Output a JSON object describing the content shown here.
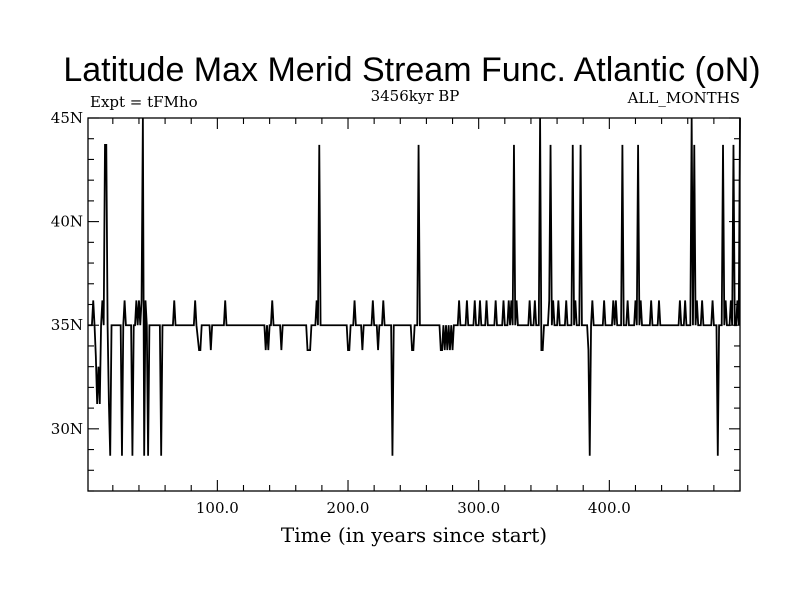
{
  "chart_data": {
    "type": "line",
    "title": "Latitude Max Merid Stream Func. Atlantic (oN)",
    "subtitle_left": "Expt = tFMho",
    "subtitle_center": "3456kyr BP",
    "subtitle_right": "ALL_MONTHS",
    "xlabel": "Time (in years since start)",
    "ylabel": "",
    "xlim": [
      1,
      500
    ],
    "ylim": [
      27,
      45
    ],
    "x_ticks": [
      100,
      200,
      300,
      400
    ],
    "x_tick_labels": [
      "100.0",
      "200.0",
      "300.0",
      "400.0"
    ],
    "y_ticks": [
      30,
      35,
      40,
      45
    ],
    "y_tick_labels": [
      "30N",
      "35N",
      "40N",
      "45N"
    ],
    "grid": false,
    "legend": "none",
    "line_color": "#000000",
    "series": [
      {
        "values": [
          [
            1,
            35
          ],
          [
            4,
            35
          ],
          [
            5,
            36.2
          ],
          [
            6,
            35
          ],
          [
            7,
            33.5
          ],
          [
            8,
            31.2
          ],
          [
            9,
            33
          ],
          [
            10,
            31.2
          ],
          [
            11,
            35
          ],
          [
            12,
            36.2
          ],
          [
            13,
            35
          ],
          [
            14,
            43.7
          ],
          [
            15,
            43.7
          ],
          [
            16,
            35
          ],
          [
            17,
            31.2
          ],
          [
            18,
            28.7
          ],
          [
            19,
            35
          ],
          [
            20,
            35
          ],
          [
            21,
            35
          ],
          [
            22,
            35
          ],
          [
            23,
            35
          ],
          [
            24,
            35
          ],
          [
            25,
            35
          ],
          [
            26,
            35
          ],
          [
            27,
            28.7
          ],
          [
            28,
            35
          ],
          [
            29,
            36.2
          ],
          [
            30,
            35
          ],
          [
            31,
            35
          ],
          [
            32,
            35
          ],
          [
            33,
            35
          ],
          [
            34,
            35
          ],
          [
            35,
            28.7
          ],
          [
            36,
            35
          ],
          [
            37,
            35
          ],
          [
            38,
            36.2
          ],
          [
            39,
            35
          ],
          [
            40,
            36.2
          ],
          [
            41,
            35
          ],
          [
            42,
            36.2
          ],
          [
            43,
            45
          ],
          [
            44,
            28.7
          ],
          [
            45,
            36.2
          ],
          [
            46,
            35
          ],
          [
            47,
            28.7
          ],
          [
            48,
            35
          ],
          [
            49,
            35
          ],
          [
            52,
            35
          ],
          [
            56,
            35
          ],
          [
            57,
            28.7
          ],
          [
            58,
            35
          ],
          [
            66,
            35
          ],
          [
            67,
            36.2
          ],
          [
            68,
            35
          ],
          [
            82,
            35
          ],
          [
            83,
            36.2
          ],
          [
            84,
            35
          ],
          [
            86,
            33.8
          ],
          [
            87,
            33.8
          ],
          [
            88,
            35
          ],
          [
            94,
            35
          ],
          [
            95,
            33.8
          ],
          [
            96,
            35
          ],
          [
            105,
            35
          ],
          [
            106,
            36.2
          ],
          [
            107,
            35
          ],
          [
            136,
            35
          ],
          [
            137,
            33.8
          ],
          [
            138,
            35
          ],
          [
            139,
            33.8
          ],
          [
            140,
            35
          ],
          [
            141,
            35
          ],
          [
            142,
            36.2
          ],
          [
            143,
            35
          ],
          [
            148,
            35
          ],
          [
            149,
            33.8
          ],
          [
            150,
            35
          ],
          [
            168,
            35
          ],
          [
            169,
            33.8
          ],
          [
            170,
            33.8
          ],
          [
            171,
            33.8
          ],
          [
            172,
            35
          ],
          [
            175,
            35
          ],
          [
            176,
            36.2
          ],
          [
            177,
            35
          ],
          [
            178,
            43.7
          ],
          [
            179,
            35
          ],
          [
            199,
            35
          ],
          [
            200,
            33.8
          ],
          [
            201,
            33.8
          ],
          [
            202,
            35
          ],
          [
            204,
            35
          ],
          [
            205,
            36.2
          ],
          [
            206,
            35
          ],
          [
            210,
            35
          ],
          [
            211,
            33.8
          ],
          [
            212,
            35
          ],
          [
            218,
            35
          ],
          [
            219,
            36.2
          ],
          [
            220,
            35
          ],
          [
            222,
            35
          ],
          [
            223,
            33.8
          ],
          [
            224,
            35
          ],
          [
            226,
            35
          ],
          [
            227,
            36.2
          ],
          [
            228,
            35
          ],
          [
            233,
            35
          ],
          [
            234,
            28.7
          ],
          [
            235,
            35
          ],
          [
            248,
            35
          ],
          [
            249,
            33.8
          ],
          [
            250,
            33.8
          ],
          [
            251,
            35
          ],
          [
            253,
            35
          ],
          [
            254,
            43.7
          ],
          [
            255,
            35
          ],
          [
            270,
            35
          ],
          [
            271,
            33.8
          ],
          [
            272,
            33.8
          ],
          [
            273,
            35
          ],
          [
            274,
            33.8
          ],
          [
            275,
            35
          ],
          [
            276,
            33.8
          ],
          [
            277,
            35
          ],
          [
            278,
            33.8
          ],
          [
            279,
            35
          ],
          [
            280,
            33.8
          ],
          [
            281,
            35
          ],
          [
            284,
            35
          ],
          [
            285,
            36.2
          ],
          [
            286,
            35
          ],
          [
            290,
            35
          ],
          [
            291,
            36.2
          ],
          [
            292,
            35
          ],
          [
            296,
            35
          ],
          [
            297,
            36.2
          ],
          [
            298,
            35
          ],
          [
            300,
            35
          ],
          [
            301,
            36.2
          ],
          [
            302,
            35
          ],
          [
            305,
            35
          ],
          [
            306,
            36.2
          ],
          [
            307,
            35
          ],
          [
            312,
            35
          ],
          [
            313,
            36.2
          ],
          [
            314,
            35
          ],
          [
            318,
            35
          ],
          [
            319,
            36.2
          ],
          [
            320,
            35
          ],
          [
            322,
            35
          ],
          [
            323,
            36.2
          ],
          [
            324,
            35
          ],
          [
            325,
            36.2
          ],
          [
            326,
            35
          ],
          [
            327,
            43.7
          ],
          [
            328,
            35
          ],
          [
            329,
            36.2
          ],
          [
            330,
            35
          ],
          [
            338,
            35
          ],
          [
            339,
            36.2
          ],
          [
            340,
            35
          ],
          [
            342,
            35
          ],
          [
            343,
            36.2
          ],
          [
            344,
            35
          ],
          [
            346,
            35
          ],
          [
            347,
            45
          ],
          [
            348,
            33.8
          ],
          [
            349,
            33.8
          ],
          [
            350,
            35
          ],
          [
            353,
            35
          ],
          [
            354,
            36.2
          ],
          [
            355,
            43.7
          ],
          [
            356,
            35
          ],
          [
            357,
            36.2
          ],
          [
            358,
            35
          ],
          [
            360,
            35
          ],
          [
            361,
            36.2
          ],
          [
            362,
            35
          ],
          [
            366,
            35
          ],
          [
            367,
            36.2
          ],
          [
            368,
            35
          ],
          [
            371,
            35
          ],
          [
            372,
            43.7
          ],
          [
            373,
            35
          ],
          [
            374,
            36.2
          ],
          [
            375,
            35
          ],
          [
            377,
            35
          ],
          [
            378,
            43.7
          ],
          [
            379,
            35
          ],
          [
            383,
            35
          ],
          [
            384,
            33.8
          ],
          [
            385,
            28.7
          ],
          [
            386,
            35
          ],
          [
            387,
            36.2
          ],
          [
            388,
            35
          ],
          [
            395,
            35
          ],
          [
            396,
            36.2
          ],
          [
            397,
            35
          ],
          [
            402,
            35
          ],
          [
            403,
            36.2
          ],
          [
            404,
            35
          ],
          [
            405,
            36.2
          ],
          [
            406,
            35
          ],
          [
            409,
            35
          ],
          [
            410,
            43.7
          ],
          [
            411,
            35
          ],
          [
            413,
            35
          ],
          [
            414,
            36.2
          ],
          [
            415,
            35
          ],
          [
            419,
            35
          ],
          [
            420,
            36.2
          ],
          [
            421,
            35
          ],
          [
            422,
            43.7
          ],
          [
            423,
            35
          ],
          [
            424,
            36.2
          ],
          [
            425,
            35
          ],
          [
            431,
            35
          ],
          [
            432,
            36.2
          ],
          [
            433,
            35
          ],
          [
            437,
            35
          ],
          [
            438,
            36.2
          ],
          [
            439,
            35
          ],
          [
            453,
            35
          ],
          [
            454,
            36.2
          ],
          [
            455,
            35
          ],
          [
            457,
            35
          ],
          [
            458,
            36.2
          ],
          [
            459,
            35
          ],
          [
            462,
            35
          ],
          [
            463,
            45
          ],
          [
            464,
            35
          ],
          [
            465,
            43.7
          ],
          [
            466,
            35
          ],
          [
            467,
            36.2
          ],
          [
            468,
            35
          ],
          [
            470,
            35
          ],
          [
            471,
            36.2
          ],
          [
            472,
            35
          ],
          [
            478,
            35
          ],
          [
            479,
            36.2
          ],
          [
            480,
            35
          ],
          [
            482,
            35
          ],
          [
            483,
            28.7
          ],
          [
            484,
            35
          ],
          [
            486,
            35
          ],
          [
            487,
            43.7
          ],
          [
            488,
            35
          ],
          [
            489,
            36.2
          ],
          [
            490,
            35
          ],
          [
            492,
            35
          ],
          [
            493,
            36.2
          ],
          [
            494,
            35
          ],
          [
            495,
            43.7
          ],
          [
            496,
            35
          ],
          [
            497,
            35
          ],
          [
            498,
            36.2
          ],
          [
            499,
            35
          ],
          [
            500,
            45
          ]
        ]
      }
    ]
  }
}
